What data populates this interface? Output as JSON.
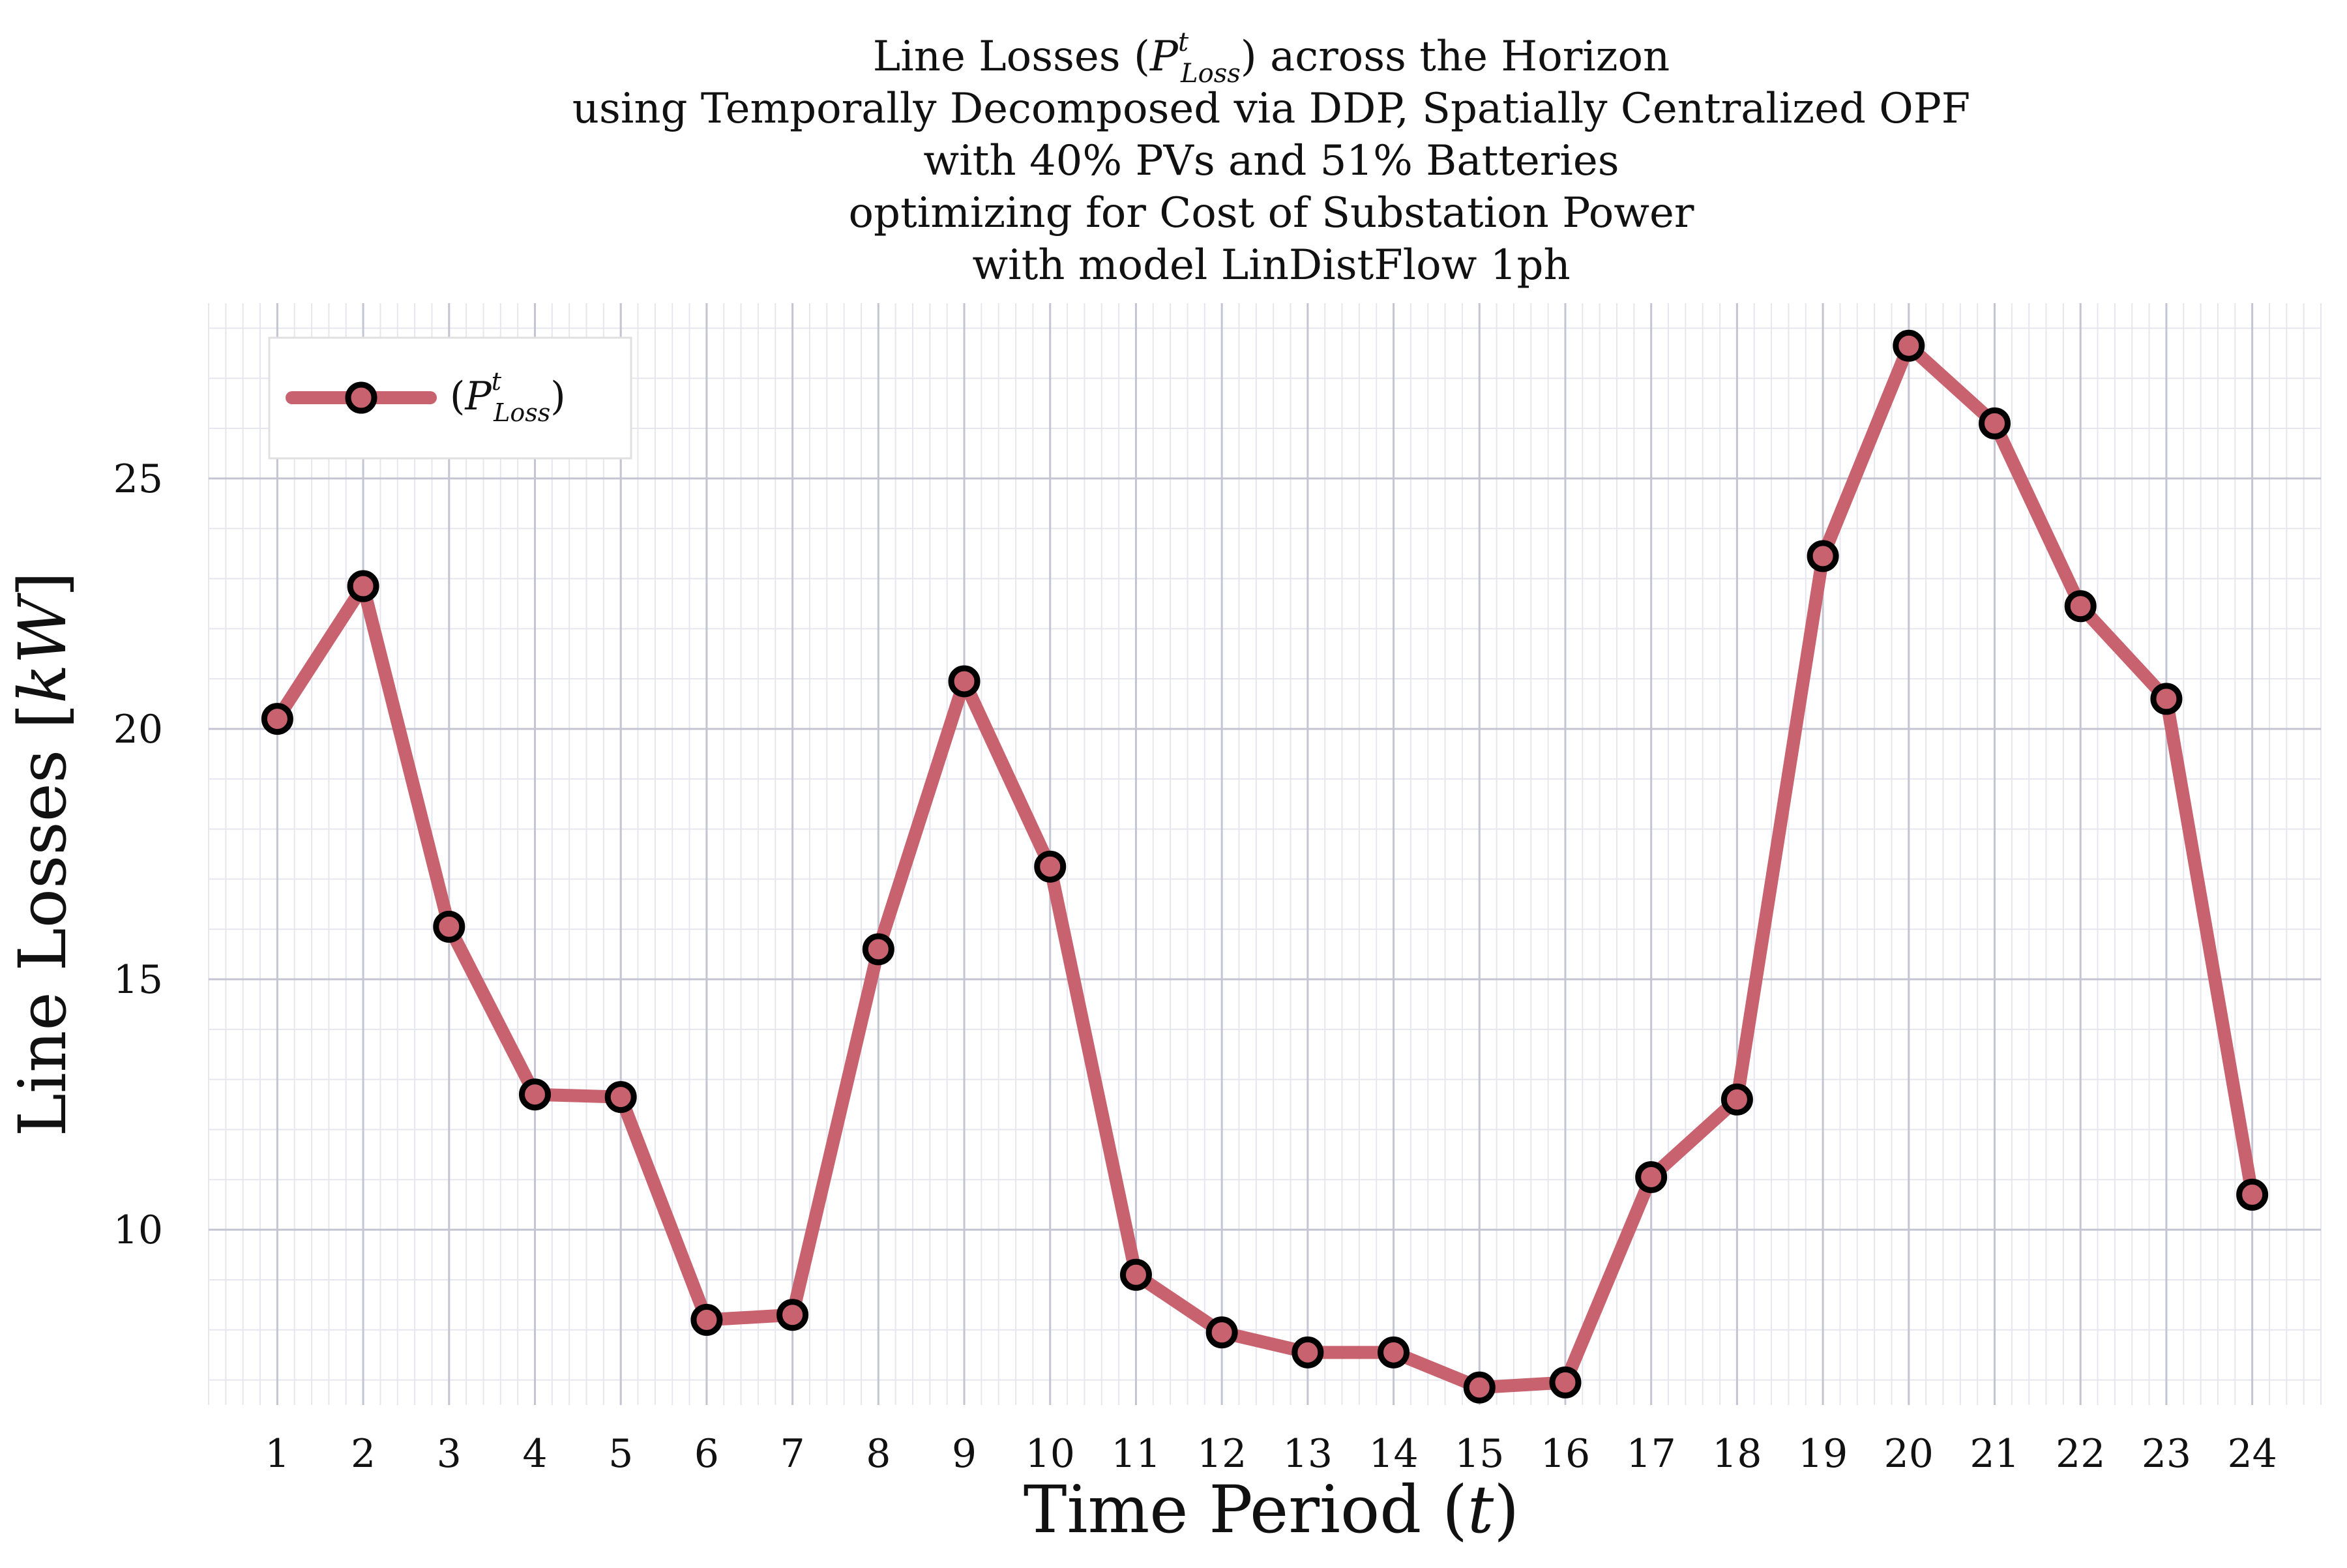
{
  "chart_data": {
    "type": "line",
    "title_lines": [
      "Line Losses (PᵗLoss) across the Horizon",
      "using Temporally Decomposed via DDP, Spatially Centralized OPF",
      "with 40% PVs and 51% Batteries",
      "optimizing for Cost of Substation Power",
      "with model LinDistFlow 1ph"
    ],
    "xlabel": "Time Period (t)",
    "ylabel": "Line Losses [kW]",
    "x": [
      1,
      2,
      3,
      4,
      5,
      6,
      7,
      8,
      9,
      10,
      11,
      12,
      13,
      14,
      15,
      16,
      17,
      18,
      19,
      20,
      21,
      22,
      23,
      24
    ],
    "x_ticks": [
      "1",
      "2",
      "3",
      "4",
      "5",
      "6",
      "7",
      "8",
      "9",
      "10",
      "11",
      "12",
      "13",
      "14",
      "15",
      "16",
      "17",
      "18",
      "19",
      "20",
      "21",
      "22",
      "23",
      "24"
    ],
    "y_ticks": [
      10,
      15,
      20,
      25
    ],
    "ylim": [
      6.5,
      28.5
    ],
    "xlim": [
      0.2,
      24.8
    ],
    "grid": true,
    "legend_position": "top-left",
    "series": [
      {
        "name": "(PᵗLoss)",
        "color": "#c9626f",
        "marker_edge": "#000000",
        "values": [
          20.2,
          22.85,
          16.05,
          12.7,
          12.65,
          8.2,
          8.3,
          15.6,
          20.95,
          17.25,
          9.1,
          7.95,
          7.55,
          7.55,
          6.85,
          6.95,
          11.05,
          12.6,
          23.45,
          27.65,
          26.1,
          22.45,
          20.6,
          10.7
        ]
      }
    ]
  }
}
